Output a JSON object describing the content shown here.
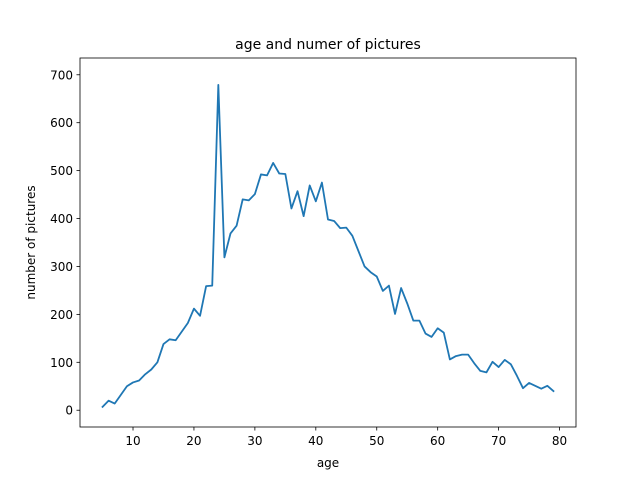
{
  "chart_data": {
    "type": "line",
    "title": "age and numer of pictures",
    "xlabel": "age",
    "ylabel": "number of pictures",
    "xlim": [
      1.3,
      82.7
    ],
    "ylim": [
      -35,
      735
    ],
    "xticks": [
      10,
      20,
      30,
      40,
      50,
      60,
      70,
      80
    ],
    "yticks": [
      0,
      100,
      200,
      300,
      400,
      500,
      600,
      700
    ],
    "grid": false,
    "colors": {
      "line": "#1f77b4",
      "axes": "#000000",
      "background": "#ffffff"
    },
    "series": [
      {
        "x": [
          5,
          6,
          7,
          8,
          9,
          10,
          11,
          12,
          13,
          14,
          15,
          16,
          17,
          18,
          19,
          20,
          21,
          22,
          23,
          24,
          25,
          26,
          27,
          28,
          29,
          30,
          31,
          32,
          33,
          34,
          35,
          36,
          37,
          38,
          39,
          40,
          41,
          42,
          43,
          44,
          45,
          46,
          47,
          48,
          49,
          50,
          51,
          52,
          53,
          54,
          55,
          56,
          57,
          58,
          59,
          60,
          61,
          62,
          63,
          64,
          65,
          66,
          67,
          68,
          69,
          70,
          71,
          72,
          73,
          74,
          75,
          76,
          77,
          78,
          79
        ],
        "values": [
          7,
          20,
          14,
          32,
          50,
          58,
          62,
          75,
          85,
          100,
          138,
          148,
          146,
          164,
          182,
          212,
          197,
          259,
          260,
          679,
          319,
          369,
          385,
          440,
          438,
          451,
          492,
          490,
          516,
          494,
          493,
          421,
          457,
          405,
          469,
          436,
          475,
          398,
          395,
          380,
          381,
          364,
          332,
          300,
          288,
          279,
          249,
          260,
          201,
          255,
          223,
          187,
          187,
          160,
          153,
          171,
          162,
          106,
          113,
          116,
          116,
          98,
          82,
          79,
          101,
          90,
          105,
          96,
          72,
          46,
          57,
          51,
          45,
          51,
          40
        ]
      }
    ]
  }
}
